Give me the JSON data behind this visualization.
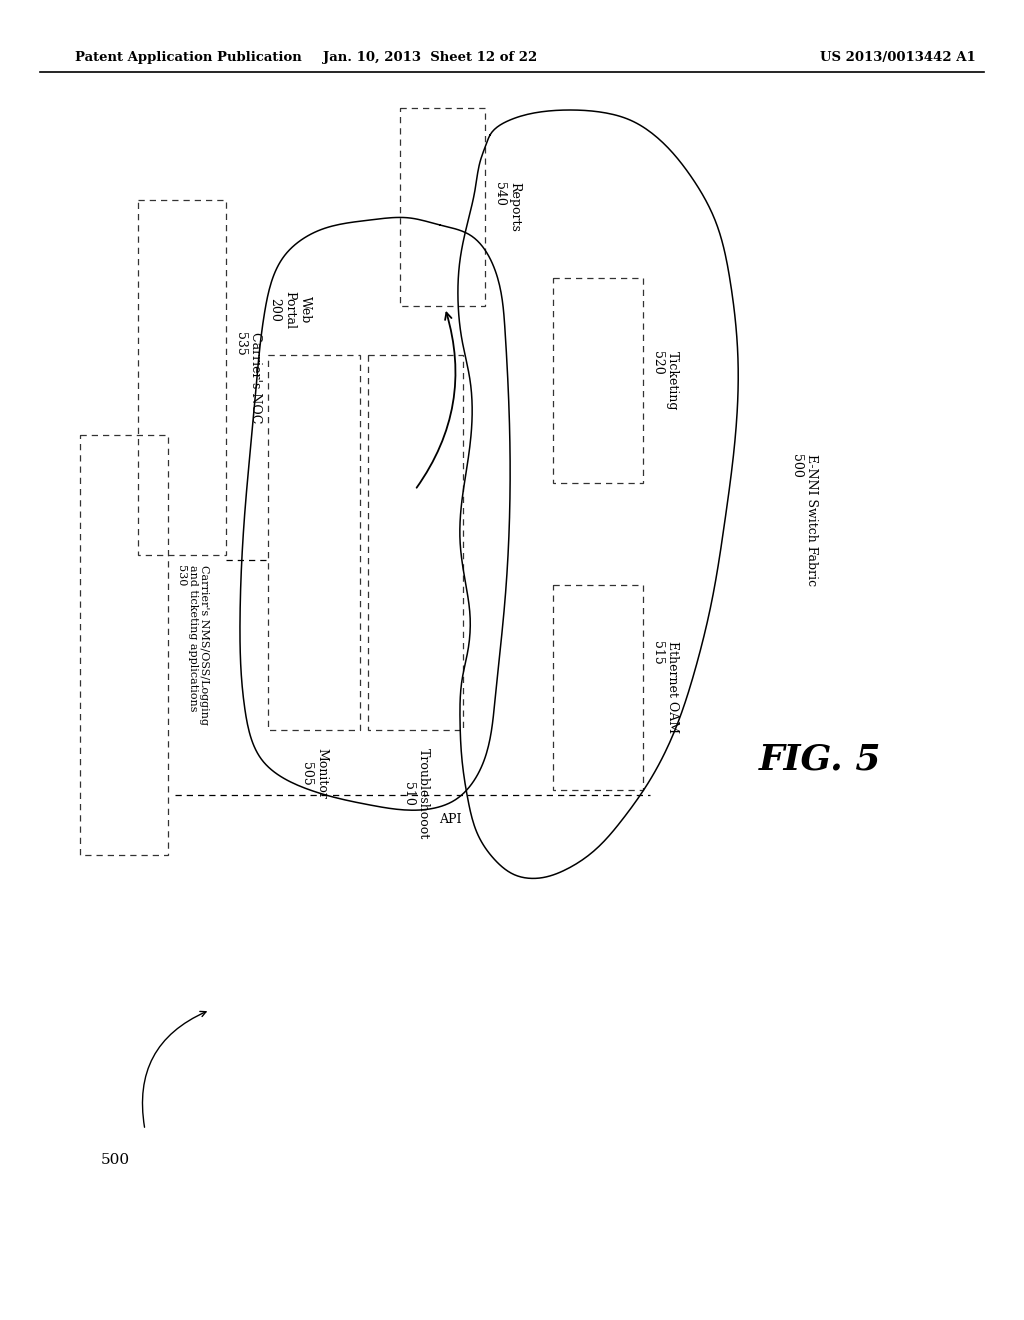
{
  "header_left": "Patent Application Publication",
  "header_mid": "Jan. 10, 2013  Sheet 12 of 22",
  "header_right": "US 2013/0013442 A1",
  "fig_label": "FIG. 5",
  "bg_color": "#ffffff"
}
